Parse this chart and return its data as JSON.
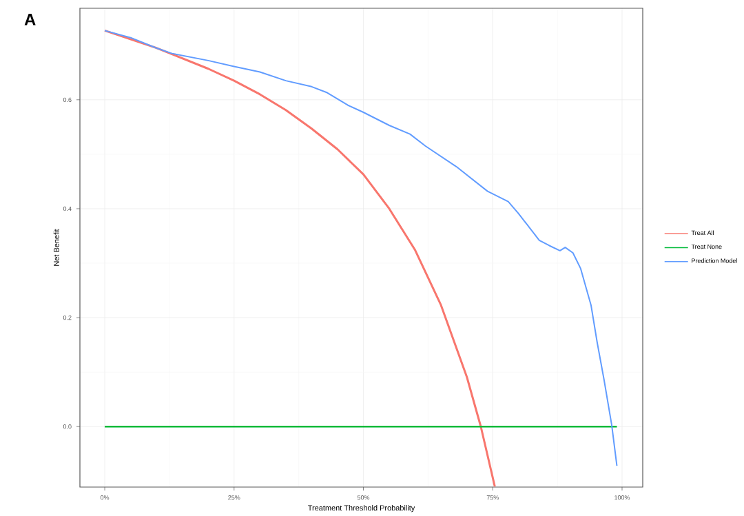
{
  "chart_data": {
    "type": "line",
    "xlabel": "Treatment Threshold Probability",
    "ylabel": "Net Benefit",
    "annotations": [
      "A"
    ],
    "xlim": [
      -0.048,
      1.04
    ],
    "ylim": [
      -0.111,
      0.768
    ],
    "xticks": [
      {
        "value": 0,
        "label": "0%"
      },
      {
        "value": 0.25,
        "label": "25%"
      },
      {
        "value": 0.5,
        "label": "50%"
      },
      {
        "value": 0.75,
        "label": "75%"
      },
      {
        "value": 1,
        "label": "100%"
      }
    ],
    "yticks": [
      {
        "value": 0,
        "label": "0.0"
      },
      0.2,
      0.4,
      0.6
    ],
    "grid": true,
    "legend": "right",
    "marker": "none",
    "line_style": "solid",
    "series": [
      {
        "name": "Treat All",
        "color": "#f8766d",
        "x": [
          0,
          0.1,
          0.2,
          0.25,
          0.3,
          0.35,
          0.4,
          0.45,
          0.5,
          0.55,
          0.6,
          0.65,
          0.7,
          0.727,
          0.754
        ],
        "values": [
          0.727,
          0.695,
          0.657,
          0.635,
          0.61,
          0.581,
          0.547,
          0.509,
          0.463,
          0.4,
          0.324,
          0.223,
          0.091,
          0,
          -0.11
        ]
      },
      {
        "name": "Treat None",
        "color": "#00ba38",
        "x": [
          0,
          0.99
        ],
        "values": [
          0,
          0
        ]
      },
      {
        "name": "Prediction Model",
        "color": "#619cff",
        "x": [
          0,
          0.05,
          0.1,
          0.13,
          0.2,
          0.25,
          0.3,
          0.35,
          0.4,
          0.43,
          0.47,
          0.5,
          0.55,
          0.59,
          0.62,
          0.68,
          0.74,
          0.78,
          0.8,
          0.84,
          0.86,
          0.88,
          0.89,
          0.905,
          0.92,
          0.94,
          0.952,
          0.965,
          0.98,
          0.99
        ],
        "values": [
          0.727,
          0.714,
          0.695,
          0.685,
          0.672,
          0.661,
          0.651,
          0.635,
          0.624,
          0.613,
          0.59,
          0.577,
          0.553,
          0.537,
          0.515,
          0.477,
          0.432,
          0.413,
          0.391,
          0.342,
          0.332,
          0.323,
          0.329,
          0.319,
          0.29,
          0.223,
          0.154,
          0.087,
          0.003,
          -0.072
        ]
      }
    ]
  }
}
